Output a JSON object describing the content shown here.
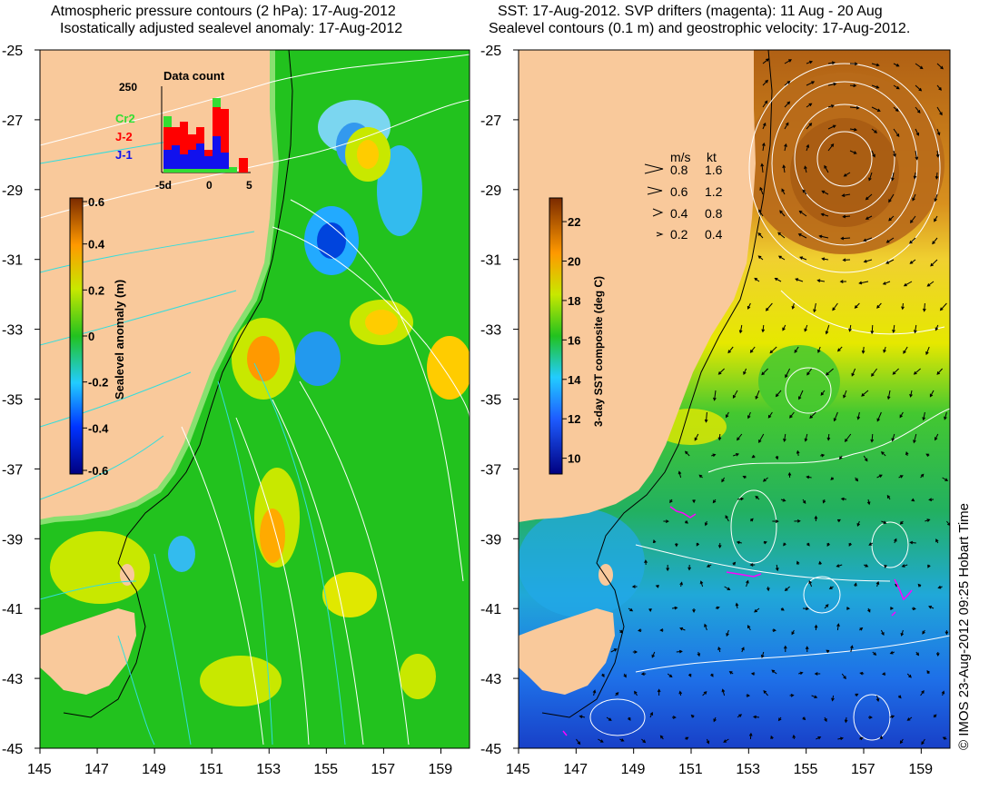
{
  "left_panel": {
    "title_line1": "Atmospheric pressure contours (2 hPa): 17-Aug-2012",
    "title_line2": "Isostatically adjusted sealevel anomaly: 17-Aug-2012",
    "colorbar": {
      "label": "Sealevel anomaly (m)",
      "ticks": [
        "0.6",
        "0.4",
        "0.2",
        "0",
        "-0.2",
        "-0.4",
        "-0.6"
      ],
      "range": [
        -0.6,
        0.6
      ]
    },
    "inset": {
      "title": "Data count",
      "y_max_label": "250",
      "x_ticks": [
        "-5d",
        "0",
        "5"
      ],
      "legend": [
        {
          "label": "Cr2",
          "color": "#33dd33"
        },
        {
          "label": "J-2",
          "color": "#ff0000"
        },
        {
          "label": "J-1",
          "color": "#1111ee"
        }
      ]
    }
  },
  "right_panel": {
    "title_line1": "SST: 17-Aug-2012. SVP drifters (magenta): 11 Aug - 20 Aug",
    "title_line2": "Sealevel contours (0.1 m) and geostrophic velocity: 17-Aug-2012.",
    "colorbar": {
      "label": "3-day SST composite (deg C)",
      "ticks": [
        "22",
        "20",
        "18",
        "16",
        "14",
        "12",
        "10"
      ],
      "range": [
        9.2,
        23.2
      ]
    },
    "velocity_legend": {
      "header_ms": "m/s",
      "header_kt": "kt",
      "rows": [
        {
          "ms": "0.8",
          "kt": "1.6"
        },
        {
          "ms": "0.6",
          "kt": "1.2"
        },
        {
          "ms": "0.4",
          "kt": "0.8"
        },
        {
          "ms": "0.2",
          "kt": "0.4"
        }
      ]
    }
  },
  "axes": {
    "lat_ticks": [
      "-25",
      "-27",
      "-29",
      "-31",
      "-33",
      "-35",
      "-37",
      "-39",
      "-41",
      "-43",
      "-45"
    ],
    "lon_ticks": [
      "145",
      "147",
      "149",
      "151",
      "153",
      "155",
      "157",
      "159"
    ],
    "lat_range": [
      -45,
      -25
    ],
    "lon_range": [
      145,
      160
    ]
  },
  "credit": "© IMOS 23-Aug-2012 09:25 Hobart Time",
  "colors": {
    "land": "#f9c99b",
    "ocean_green": "#22c21e",
    "contour_white": "#ffffff",
    "contour_cyan": "#33dddd",
    "drifter": "#ff00ff"
  }
}
